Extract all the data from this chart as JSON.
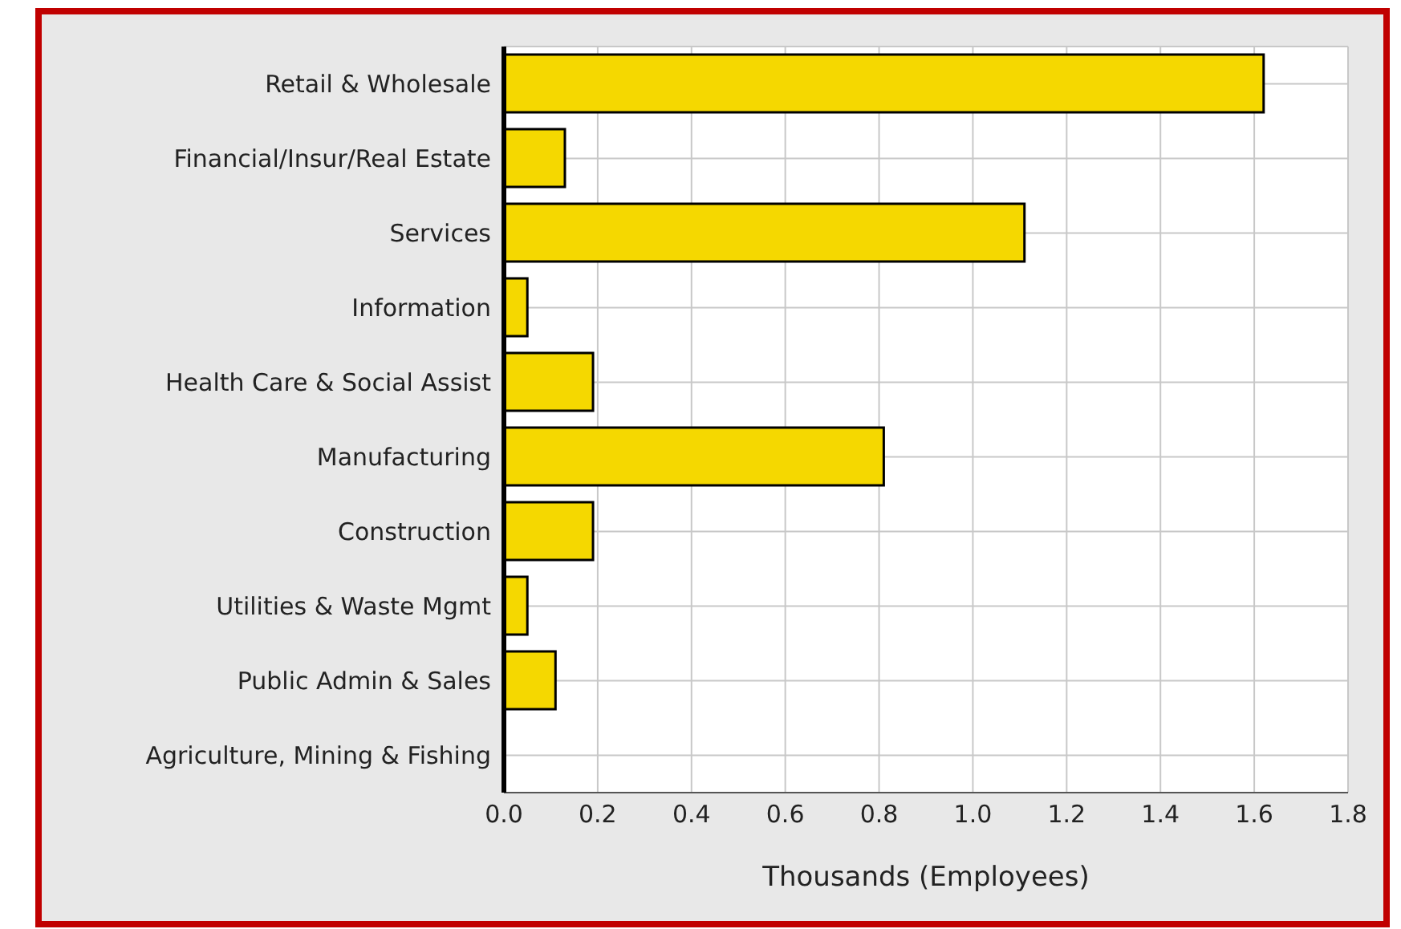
{
  "chart_data": {
    "type": "bar",
    "orientation": "horizontal",
    "xlabel": "Thousands (Employees)",
    "categories": [
      "Retail & Wholesale",
      "Financial/Insur/Real Estate",
      "Services",
      "Information",
      "Health Care & Social Assist",
      "Manufacturing",
      "Construction",
      "Utilities & Waste Mgmt",
      "Public Admin & Sales",
      "Agriculture, Mining & Fishing"
    ],
    "values": [
      1.62,
      0.13,
      1.11,
      0.05,
      0.19,
      0.81,
      0.19,
      0.05,
      0.11,
      0
    ],
    "color": "#f5d800",
    "xlim": [
      0,
      1.8
    ],
    "xticks": [
      {
        "value": 0,
        "label": "0.0"
      },
      0.2,
      0.4,
      0.6,
      0.8,
      {
        "value": 1,
        "label": "1.0"
      },
      1.2,
      1.4,
      1.6,
      1.8
    ],
    "grid": true,
    "legend": false
  }
}
